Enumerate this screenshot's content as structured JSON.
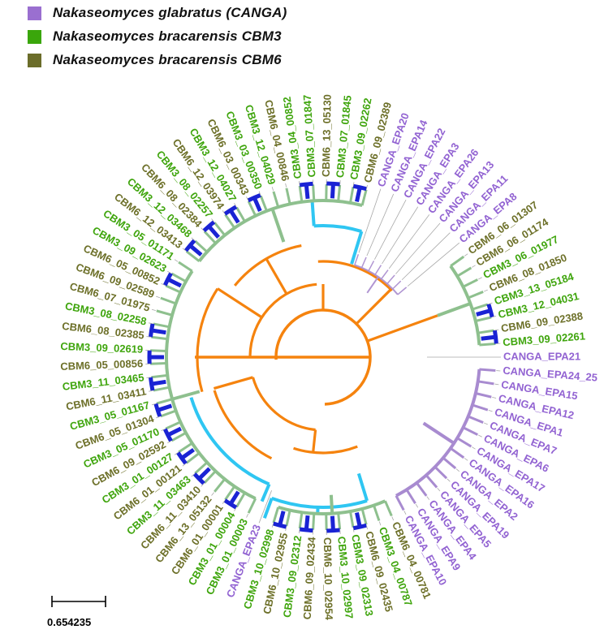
{
  "legend": {
    "items": [
      {
        "label": "Nakaseomyces glabratus (CANGA)",
        "color": "#9a6fd0"
      },
      {
        "label": "Nakaseomyces bracarensis CBM3",
        "color": "#3aa60b"
      },
      {
        "label": "Nakaseomyces bracarensis CBM6",
        "color": "#6b6d2a"
      }
    ]
  },
  "scale_bar": {
    "value": "0.654235"
  },
  "tree": {
    "type": "circular-phylogram",
    "colors": {
      "canga_label": "#9263d2",
      "cbm3_label": "#3fa50d",
      "cbm6_label": "#6d7029",
      "branch_orange": "#f5830e",
      "branch_cyan": "#2fc6f2",
      "branch_green": "#8ec08e",
      "branch_purple": "#a88bd0",
      "branch_purple_thin": "#b095d2",
      "tip_blue": "#1a23d4",
      "connector_gray": "#a8a8a8"
    },
    "leaves": [
      {
        "name": "CANGA_EPA21"
      },
      {
        "name": "CBM3_09_02261"
      },
      {
        "name": "CBM6_09_02388"
      },
      {
        "name": "CBM3_12_04031"
      },
      {
        "name": "CBM3_13_05184"
      },
      {
        "name": "CBM6_08_01850"
      },
      {
        "name": "CBM3_06_01977"
      },
      {
        "name": "CBM6_06_01174"
      },
      {
        "name": "CBM6_06_01307"
      },
      {
        "name": "CANGA_EPA8"
      },
      {
        "name": "CANGA_EPA11"
      },
      {
        "name": "CANGA_EPA13"
      },
      {
        "name": "CANGA_EPA26"
      },
      {
        "name": "CANGA_EPA3"
      },
      {
        "name": "CANGA_EPA22"
      },
      {
        "name": "CANGA_EPA14"
      },
      {
        "name": "CANGA_EPA20"
      },
      {
        "name": "CBM6_09_02389"
      },
      {
        "name": "CBM3_09_02262"
      },
      {
        "name": "CBM3_07_01845"
      },
      {
        "name": "CBM6_13_05130"
      },
      {
        "name": "CBM3_07_01847"
      },
      {
        "name": "CBM3_04_00852"
      },
      {
        "name": "CBM6_04_00846"
      },
      {
        "name": "CBM3_12_04029"
      },
      {
        "name": "CBM3_03_00350"
      },
      {
        "name": "CBM6_03_00343"
      },
      {
        "name": "CBM3_12_04027"
      },
      {
        "name": "CBM6_12_03974"
      },
      {
        "name": "CBM3_08_02257"
      },
      {
        "name": "CBM6_08_02384"
      },
      {
        "name": "CBM3_12_03468"
      },
      {
        "name": "CBM6_12_03413"
      },
      {
        "name": "CBM3_05_01171"
      },
      {
        "name": "CBM3_09_02623"
      },
      {
        "name": "CBM6_05_00852"
      },
      {
        "name": "CBM6_09_02589"
      },
      {
        "name": "CBM6_07_01975"
      },
      {
        "name": "CBM3_08_02258"
      },
      {
        "name": "CBM6_08_02385"
      },
      {
        "name": "CBM3_09_02619"
      },
      {
        "name": "CBM6_05_00856"
      },
      {
        "name": "CBM3_11_03465"
      },
      {
        "name": "CBM6_11_03411"
      },
      {
        "name": "CBM3_05_01167"
      },
      {
        "name": "CBM6_05_01304"
      },
      {
        "name": "CBM3_05_01170"
      },
      {
        "name": "CBM6_09_02592"
      },
      {
        "name": "CBM3_01_00127"
      },
      {
        "name": "CBM6_01_00121"
      },
      {
        "name": "CBM3_11_03463"
      },
      {
        "name": "CBM6_11_03410"
      },
      {
        "name": "CBM6_13_05132"
      },
      {
        "name": "CBM6_01_00001"
      },
      {
        "name": "CBM3_01_00004"
      },
      {
        "name": "CBM3_01_00003"
      },
      {
        "name": "CANGA_EPA23"
      },
      {
        "name": "CBM3_10_02998"
      },
      {
        "name": "CBM6_10_02955"
      },
      {
        "name": "CBM3_09_02312"
      },
      {
        "name": "CBM6_09_02434"
      },
      {
        "name": "CBM6_10_02954"
      },
      {
        "name": "CBM3_10_02997"
      },
      {
        "name": "CBM3_09_02313"
      },
      {
        "name": "CBM6_09_02435"
      },
      {
        "name": "CBM3_04_00787"
      },
      {
        "name": "CBM6_04_00781"
      },
      {
        "name": "CANGA_EPA10"
      },
      {
        "name": "CANGA_EPA9"
      },
      {
        "name": "CANGA_EPA4"
      },
      {
        "name": "CANGA_EPA5"
      },
      {
        "name": "CANGA_EPA19"
      },
      {
        "name": "CANGA_EPA2"
      },
      {
        "name": "CANGA_EPA16"
      },
      {
        "name": "CANGA_EPA17"
      },
      {
        "name": "CANGA_EPA6"
      },
      {
        "name": "CANGA_EPA7"
      },
      {
        "name": "CANGA_EPA1"
      },
      {
        "name": "CANGA_EPA12"
      },
      {
        "name": "CANGA_EPA15"
      },
      {
        "name": "CANGA_EPA24_25"
      }
    ],
    "clades": [
      {
        "start": 1,
        "end": 8,
        "color": "green"
      },
      {
        "start": 9,
        "end": 16,
        "color": "purple_thin"
      },
      {
        "start": 17,
        "end": 32,
        "color": "green"
      },
      {
        "start": 33,
        "end": 55,
        "color": "green"
      },
      {
        "start": 57,
        "end": 66,
        "color": "green"
      },
      {
        "start": 67,
        "end": 80,
        "color": "purple"
      }
    ],
    "blue_pairs": [
      [
        1,
        2
      ],
      [
        3,
        4
      ],
      [
        17,
        18
      ],
      [
        19,
        20
      ],
      [
        21,
        22
      ],
      [
        25,
        26
      ],
      [
        27,
        28
      ],
      [
        29,
        30
      ],
      [
        31,
        32
      ],
      [
        34,
        35
      ],
      [
        38,
        39
      ],
      [
        40,
        41
      ],
      [
        42,
        43
      ],
      [
        44,
        45
      ],
      [
        46,
        47
      ],
      [
        48,
        49
      ],
      [
        50,
        51
      ],
      [
        53,
        54
      ],
      [
        57,
        58
      ],
      [
        59,
        60
      ],
      [
        61,
        62
      ],
      [
        63,
        64
      ]
    ]
  }
}
